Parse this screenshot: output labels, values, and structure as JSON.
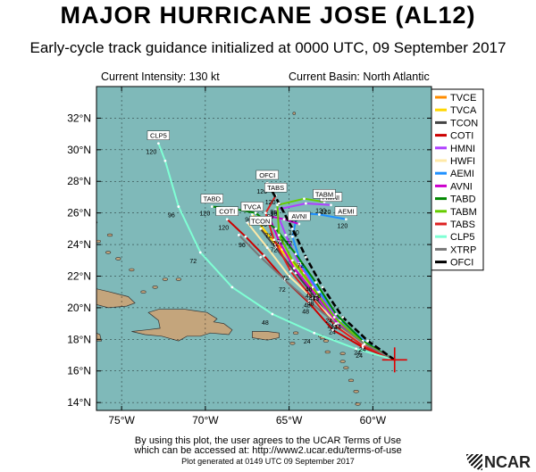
{
  "header": {
    "title": "MAJOR HURRICANE JOSE (AL12)",
    "subtitle": "Early-cycle track guidance initialized at 0000 UTC, 09 September 2017"
  },
  "info": {
    "intensity": "Current Intensity: 130 kt",
    "basin": "Current Basin: North Atlantic"
  },
  "axes": {
    "lon_range": [
      -76.5,
      -56.5
    ],
    "lat_range": [
      13.5,
      34.0
    ],
    "lon_ticks": [
      {
        "v": -75,
        "label": "75°W"
      },
      {
        "v": -70,
        "label": "70°W"
      },
      {
        "v": -65,
        "label": "65°W"
      },
      {
        "v": -60,
        "label": "60°W"
      }
    ],
    "lat_ticks": [
      {
        "v": 14,
        "label": "14°N"
      },
      {
        "v": 16,
        "label": "16°N"
      },
      {
        "v": 18,
        "label": "18°N"
      },
      {
        "v": 20,
        "label": "20°N"
      },
      {
        "v": 22,
        "label": "22°N"
      },
      {
        "v": 24,
        "label": "24°N"
      },
      {
        "v": 26,
        "label": "26°N"
      },
      {
        "v": 28,
        "label": "28°N"
      },
      {
        "v": 30,
        "label": "30°N"
      },
      {
        "v": 32,
        "label": "32°N"
      }
    ],
    "ocean_color": "#7fb9b9",
    "land_color": "#c4a57c"
  },
  "storm_position": {
    "lon": -58.7,
    "lat": 16.7
  },
  "models": [
    {
      "name": "TVCE",
      "color": "#ff8c00",
      "track": [
        [
          -58.7,
          16.7
        ],
        [
          -60.4,
          17.6
        ],
        [
          -62.0,
          18.8
        ],
        [
          -63.1,
          20.6
        ],
        [
          -64.1,
          22.2
        ],
        [
          -65.4,
          23.7
        ],
        [
          -66.6,
          25.0
        ]
      ],
      "hours": [],
      "end_label": ""
    },
    {
      "name": "TVCA",
      "color": "#ffd700",
      "track": [
        [
          -58.7,
          16.7
        ],
        [
          -60.5,
          17.7
        ],
        [
          -62.1,
          18.9
        ],
        [
          -63.3,
          20.8
        ],
        [
          -64.4,
          22.4
        ],
        [
          -65.8,
          24.0
        ],
        [
          -67.2,
          25.9
        ]
      ],
      "hours": [],
      "end_label": "TVCA"
    },
    {
      "name": "TCON",
      "color": "#444444",
      "track": [
        [
          -58.7,
          16.7
        ],
        [
          -60.5,
          17.6
        ],
        [
          -62.2,
          18.8
        ],
        [
          -63.4,
          20.6
        ],
        [
          -64.6,
          22.2
        ],
        [
          -65.8,
          23.8
        ],
        [
          -66.7,
          25.0
        ]
      ],
      "hours": [],
      "end_label": "TCON"
    },
    {
      "name": "COTI",
      "color": "#cc0000",
      "track": [
        [
          -58.7,
          16.7
        ],
        [
          -60.6,
          17.5
        ],
        [
          -62.4,
          18.6
        ],
        [
          -63.8,
          20.3
        ],
        [
          -65.2,
          21.7
        ],
        [
          -66.5,
          23.3
        ],
        [
          -67.6,
          24.5
        ],
        [
          -68.7,
          25.6
        ]
      ],
      "hours": [
        "24",
        "48",
        "72",
        "96",
        "120"
      ],
      "end_label": "COTI"
    },
    {
      "name": "HMNI",
      "color": "#b040ff",
      "track": [
        [
          -58.7,
          16.7
        ],
        [
          -60.4,
          17.8
        ],
        [
          -62.0,
          19.2
        ],
        [
          -63.3,
          21.0
        ],
        [
          -64.4,
          22.8
        ],
        [
          -65.2,
          24.6
        ],
        [
          -65.8,
          26.2
        ],
        [
          -64.0,
          26.6
        ],
        [
          -62.5,
          26.5
        ]
      ],
      "hours": [
        "24",
        "48",
        "72",
        "96",
        "120"
      ],
      "end_label": "HMNI"
    },
    {
      "name": "HWFI",
      "color": "#ffe9a8",
      "track": [
        [
          -58.7,
          16.7
        ],
        [
          -60.4,
          17.6
        ],
        [
          -62.0,
          18.8
        ],
        [
          -63.5,
          20.5
        ],
        [
          -65.0,
          22.0
        ],
        [
          -66.3,
          23.8
        ],
        [
          -67.5,
          25.4
        ]
      ],
      "hours": [],
      "end_label": ""
    },
    {
      "name": "AEMI",
      "color": "#1e90ff",
      "track": [
        [
          -58.7,
          16.7
        ],
        [
          -60.4,
          17.8
        ],
        [
          -61.9,
          19.2
        ],
        [
          -63.2,
          21.0
        ],
        [
          -64.3,
          22.8
        ],
        [
          -64.8,
          24.5
        ],
        [
          -64.5,
          26.0
        ],
        [
          -63.2,
          25.9
        ],
        [
          -61.6,
          25.6
        ]
      ],
      "hours": [
        "24",
        "48",
        "72",
        "96",
        "120"
      ],
      "end_label": "AEMI"
    },
    {
      "name": "AVNI",
      "color": "#cc00cc",
      "track": [
        [
          -58.7,
          16.7
        ],
        [
          -60.5,
          17.7
        ],
        [
          -62.1,
          19.0
        ],
        [
          -63.4,
          20.8
        ],
        [
          -64.7,
          22.5
        ],
        [
          -65.6,
          24.2
        ],
        [
          -66.2,
          25.8
        ],
        [
          -65.3,
          25.6
        ],
        [
          -64.4,
          25.3
        ]
      ],
      "hours": [
        "24",
        "48",
        "72",
        "96",
        "120"
      ],
      "end_label": "AVNI"
    },
    {
      "name": "TABD",
      "color": "#008800",
      "track": [
        [
          -58.7,
          16.7
        ],
        [
          -60.6,
          17.9
        ],
        [
          -62.2,
          19.6
        ],
        [
          -63.4,
          21.6
        ],
        [
          -64.6,
          23.4
        ],
        [
          -65.8,
          25.0
        ],
        [
          -67.0,
          26.0
        ],
        [
          -68.5,
          26.3
        ],
        [
          -69.6,
          26.4
        ]
      ],
      "hours": [
        "24",
        "48",
        "72",
        "96",
        "120"
      ],
      "end_label": "TABD"
    },
    {
      "name": "TABM",
      "color": "#66cc00",
      "track": [
        [
          -58.7,
          16.7
        ],
        [
          -60.6,
          17.8
        ],
        [
          -62.3,
          19.4
        ],
        [
          -63.6,
          21.3
        ],
        [
          -64.8,
          23.0
        ],
        [
          -65.6,
          24.6
        ],
        [
          -65.7,
          26.5
        ],
        [
          -64.1,
          26.9
        ],
        [
          -62.9,
          26.7
        ]
      ],
      "hours": [
        "24",
        "48",
        "72",
        "96",
        "120"
      ],
      "end_label": "TABM"
    },
    {
      "name": "TABS",
      "color": "#dd2222",
      "track": [
        [
          -58.7,
          16.7
        ],
        [
          -60.6,
          17.6
        ],
        [
          -62.3,
          18.9
        ],
        [
          -63.6,
          20.6
        ],
        [
          -64.9,
          22.3
        ],
        [
          -65.9,
          24.3
        ],
        [
          -66.4,
          26.0
        ],
        [
          -65.8,
          27.1
        ]
      ],
      "hours": [
        "24",
        "48",
        "72",
        "96",
        "120"
      ],
      "end_label": "TABS"
    },
    {
      "name": "CLP5",
      "color": "#7fffd4",
      "track": [
        [
          -58.7,
          16.7
        ],
        [
          -61.0,
          17.4
        ],
        [
          -63.5,
          18.4
        ],
        [
          -66.0,
          19.6
        ],
        [
          -68.4,
          21.3
        ],
        [
          -70.3,
          23.5
        ],
        [
          -71.6,
          26.4
        ],
        [
          -72.4,
          29.3
        ],
        [
          -72.8,
          30.4
        ]
      ],
      "hours": [
        "24",
        "48",
        "72",
        "96",
        "120"
      ],
      "end_label": "CLP5"
    },
    {
      "name": "XTRP",
      "color": "#777777",
      "track": [
        [
          -58.7,
          16.7
        ],
        [
          -60.5,
          17.7
        ],
        [
          -62.2,
          19.0
        ],
        [
          -63.8,
          20.4
        ],
        [
          -65.3,
          21.8
        ],
        [
          -66.7,
          23.2
        ],
        [
          -68.0,
          24.6
        ]
      ],
      "hours": [],
      "end_label": ""
    },
    {
      "name": "OFCI",
      "color": "#000000",
      "track": [
        [
          -58.7,
          16.7
        ],
        [
          -60.3,
          17.9
        ],
        [
          -61.8,
          19.4
        ],
        [
          -63.0,
          21.3
        ],
        [
          -64.0,
          23.2
        ],
        [
          -64.8,
          25.0
        ],
        [
          -65.6,
          26.6
        ],
        [
          -66.3,
          27.9
        ]
      ],
      "hours": [
        "24",
        "48",
        "72",
        "96",
        "120"
      ],
      "end_label": "OFCI"
    }
  ],
  "footer": {
    "terms_line1": "By using this plot, the user agrees to the UCAR Terms of Use",
    "terms_line2": "which can be accessed at: http://www2.ucar.edu/terms-of-use",
    "generated": "Plot generated at 0149 UTC  09 September 2017",
    "logo": "NCAR"
  }
}
